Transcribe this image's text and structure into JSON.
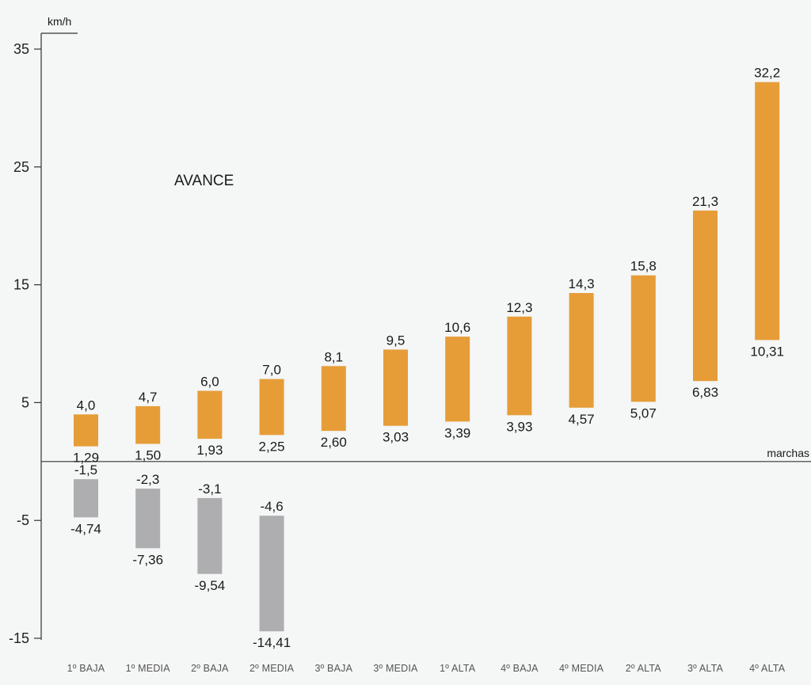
{
  "chart_data": {
    "type": "bar",
    "ylabel": "km/h",
    "xlabel": "marchas",
    "annotation": "AVANCE",
    "ylim": [
      -15,
      35
    ],
    "yticks": [
      35,
      25,
      15,
      5,
      -5,
      -15
    ],
    "ytick_labels": [
      "35",
      "25",
      "15",
      "5",
      "-5",
      "-15"
    ],
    "categories": [
      "1º BAJA",
      "1º MEDIA",
      "2º BAJA",
      "2º MEDIA",
      "3º BAJA",
      "3º MEDIA",
      "1º ALTA",
      "4º BAJA",
      "4º MEDIA",
      "2º ALTA",
      "3º ALTA",
      "4º ALTA"
    ],
    "series": [
      {
        "name": "",
        "color": "#e69d38",
        "ranges": [
          [
            1.29,
            4.0
          ],
          [
            1.5,
            4.7
          ],
          [
            1.93,
            6.0
          ],
          [
            2.25,
            7.0
          ],
          [
            2.6,
            8.1
          ],
          [
            3.03,
            9.5
          ],
          [
            3.39,
            10.6
          ],
          [
            3.93,
            12.3
          ],
          [
            4.57,
            14.3
          ],
          [
            5.07,
            15.8
          ],
          [
            6.83,
            21.3
          ],
          [
            10.31,
            32.2
          ]
        ],
        "low_labels": [
          "1,29",
          "1,50",
          "1,93",
          "2,25",
          "2,60",
          "3,03",
          "3,39",
          "3,93",
          "4,57",
          "5,07",
          "6,83",
          "10,31"
        ],
        "high_labels": [
          "4,0",
          "4,7",
          "6,0",
          "7,0",
          "8,1",
          "9,5",
          "10,6",
          "12,3",
          "14,3",
          "15,8",
          "21,3",
          "32,2"
        ]
      },
      {
        "name": "",
        "color": "#aeaeb0",
        "ranges": [
          [
            -1.5,
            -4.74
          ],
          [
            -2.3,
            -7.36
          ],
          [
            -3.1,
            -9.54
          ],
          [
            -4.6,
            -14.41
          ]
        ],
        "low_labels": [
          "-4,74",
          "-7,36",
          "-9,54",
          "-14,41"
        ],
        "high_labels": [
          "-1,5",
          "-2,3",
          "-3,1",
          "-4,6"
        ]
      }
    ]
  }
}
